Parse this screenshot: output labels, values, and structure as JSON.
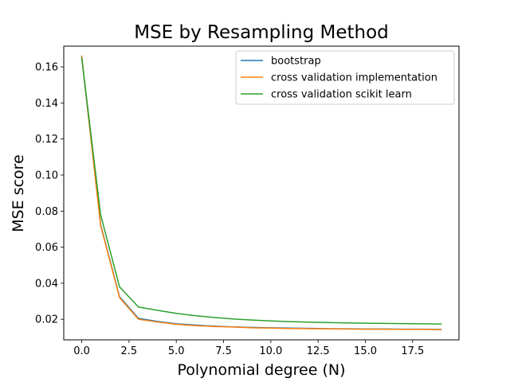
{
  "chart_data": {
    "type": "line",
    "title": "MSE by Resampling Method",
    "xlabel": "Polynomial degree (N)",
    "ylabel": "MSE score",
    "xlim": [
      -0.95,
      19.95
    ],
    "ylim": [
      0.0086,
      0.1715
    ],
    "x": [
      0,
      1,
      2,
      3,
      4,
      5,
      6,
      7,
      8,
      9,
      10,
      11,
      12,
      13,
      14,
      15,
      16,
      17,
      18,
      19
    ],
    "xticks": [
      0.0,
      2.5,
      5.0,
      7.5,
      10.0,
      12.5,
      15.0,
      17.5
    ],
    "xtick_labels": [
      "0.0",
      "2.5",
      "5.0",
      "7.5",
      "10.0",
      "12.5",
      "15.0",
      "17.5"
    ],
    "yticks": [
      0.02,
      0.04,
      0.06,
      0.08,
      0.1,
      0.12,
      0.14,
      0.16
    ],
    "ytick_labels": [
      "0.02",
      "0.04",
      "0.06",
      "0.08",
      "0.10",
      "0.12",
      "0.14",
      "0.16"
    ],
    "grid": false,
    "legend_position": "upper right",
    "series": [
      {
        "name": "bootstrap",
        "color": "#1f77b4",
        "values": [
          0.1655,
          0.0725,
          0.0325,
          0.0205,
          0.0188,
          0.0175,
          0.0168,
          0.0162,
          0.0158,
          0.0155,
          0.0153,
          0.0151,
          0.015,
          0.0148,
          0.0147,
          0.0146,
          0.0146,
          0.0145,
          0.0145,
          0.0144
        ]
      },
      {
        "name": "cross validation implementation",
        "color": "#ff7f0e",
        "values": [
          0.166,
          0.072,
          0.032,
          0.02,
          0.0185,
          0.0172,
          0.0165,
          0.016,
          0.0157,
          0.0153,
          0.0151,
          0.0149,
          0.0148,
          0.0147,
          0.0146,
          0.0145,
          0.0145,
          0.0144,
          0.0144,
          0.0143
        ]
      },
      {
        "name": "cross validation scikit learn",
        "color": "#2ca02c",
        "values": [
          0.165,
          0.078,
          0.038,
          0.0268,
          0.025,
          0.0233,
          0.022,
          0.021,
          0.0202,
          0.0196,
          0.0191,
          0.0187,
          0.0184,
          0.0182,
          0.018,
          0.0178,
          0.0177,
          0.0176,
          0.0175,
          0.0174
        ]
      }
    ]
  }
}
